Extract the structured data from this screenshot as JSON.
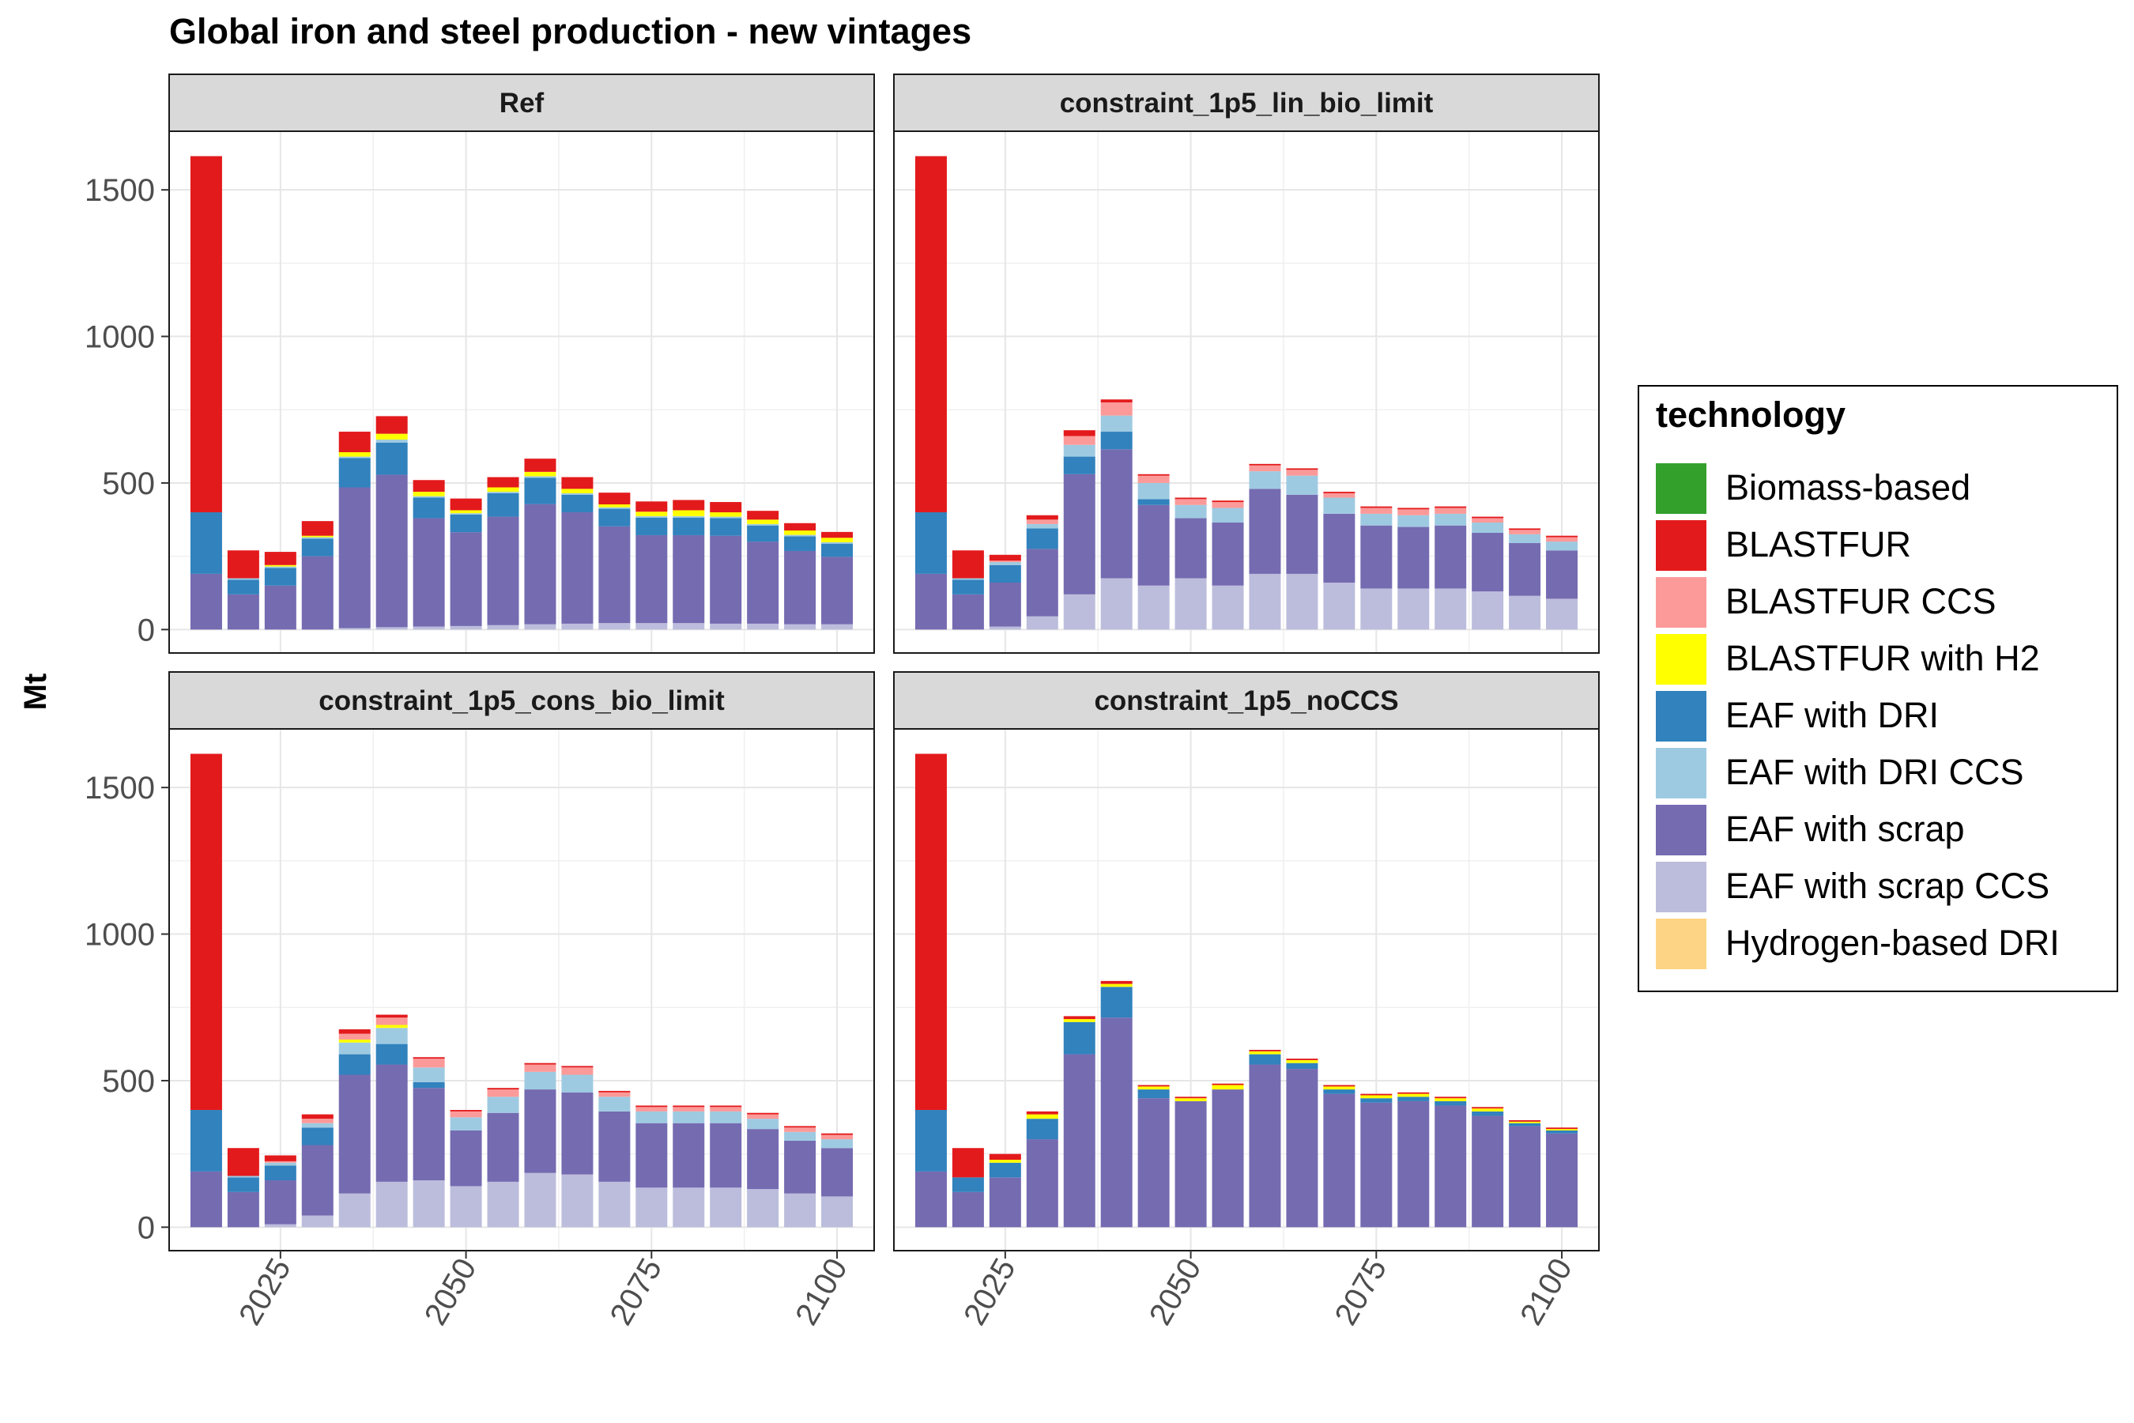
{
  "title": "Global iron and steel production - new vintages",
  "y_axis_label": "Mt",
  "legend": {
    "title": "technology",
    "items": [
      {
        "name": "Biomass-based",
        "color": "#33a02c"
      },
      {
        "name": "BLASTFUR",
        "color": "#e31a1c"
      },
      {
        "name": "BLASTFUR CCS",
        "color": "#fb9a99"
      },
      {
        "name": "BLASTFUR with H2",
        "color": "#ffff00"
      },
      {
        "name": "EAF with DRI",
        "color": "#3182bd"
      },
      {
        "name": "EAF with DRI CCS",
        "color": "#9ecae1"
      },
      {
        "name": "EAF with scrap",
        "color": "#756bb1"
      },
      {
        "name": "EAF with scrap CCS",
        "color": "#bcbddc"
      },
      {
        "name": "Hydrogen-based DRI",
        "color": "#fdd485"
      }
    ]
  },
  "chart_data": {
    "type": "bar",
    "stacked": true,
    "x": [
      2015,
      2020,
      2025,
      2030,
      2035,
      2040,
      2045,
      2050,
      2055,
      2060,
      2065,
      2070,
      2075,
      2080,
      2085,
      2090,
      2095,
      2100
    ],
    "x_ticks": [
      "2025",
      "2050",
      "2075",
      "2100"
    ],
    "xlim": [
      2010,
      2105
    ],
    "y_ticks": [
      "0",
      "500",
      "1000",
      "1500"
    ],
    "ylim": [
      -80,
      1700
    ],
    "panels": [
      {
        "name": "Ref",
        "series": [
          {
            "name": "EAF with scrap CCS",
            "values": [
              0,
              0,
              0,
              0,
              5,
              8,
              10,
              12,
              15,
              18,
              20,
              22,
              22,
              22,
              20,
              20,
              18,
              18
            ]
          },
          {
            "name": "EAF with scrap",
            "values": [
              190,
              120,
              150,
              250,
              480,
              520,
              370,
              320,
              370,
              410,
              380,
              330,
              300,
              300,
              300,
              280,
              250,
              230
            ]
          },
          {
            "name": "EAF with DRI",
            "values": [
              210,
              50,
              60,
              60,
              100,
              110,
              70,
              60,
              80,
              90,
              60,
              60,
              60,
              60,
              60,
              55,
              50,
              45
            ]
          },
          {
            "name": "EAF with DRI CCS",
            "values": [
              0,
              5,
              5,
              5,
              5,
              10,
              5,
              5,
              5,
              5,
              5,
              5,
              5,
              5,
              5,
              5,
              5,
              5
            ]
          },
          {
            "name": "BLASTFUR with H2",
            "values": [
              0,
              0,
              5,
              5,
              15,
              20,
              15,
              10,
              15,
              15,
              15,
              10,
              15,
              20,
              15,
              15,
              15,
              15
            ]
          },
          {
            "name": "BLASTFUR CCS",
            "values": [
              0,
              0,
              0,
              0,
              0,
              0,
              0,
              0,
              0,
              0,
              0,
              0,
              0,
              0,
              0,
              0,
              0,
              0
            ]
          },
          {
            "name": "BLASTFUR",
            "values": [
              1215,
              95,
              45,
              50,
              70,
              60,
              40,
              40,
              35,
              45,
              40,
              40,
              35,
              35,
              35,
              30,
              25,
              20
            ]
          },
          {
            "name": "Hydrogen-based DRI",
            "values": [
              0,
              0,
              0,
              0,
              0,
              0,
              0,
              0,
              0,
              0,
              0,
              0,
              0,
              0,
              0,
              0,
              0,
              0
            ]
          },
          {
            "name": "Biomass-based",
            "values": [
              0,
              0,
              0,
              0,
              0,
              0,
              0,
              0,
              0,
              0,
              0,
              0,
              0,
              0,
              0,
              0,
              0,
              0
            ]
          }
        ]
      },
      {
        "name": "constraint_1p5_lin_bio_limit",
        "series": [
          {
            "name": "EAF with scrap CCS",
            "values": [
              0,
              0,
              10,
              45,
              120,
              175,
              150,
              175,
              150,
              190,
              190,
              160,
              140,
              140,
              140,
              130,
              115,
              105
            ]
          },
          {
            "name": "EAF with scrap",
            "values": [
              190,
              120,
              150,
              230,
              410,
              440,
              275,
              205,
              215,
              290,
              270,
              235,
              215,
              210,
              215,
              200,
              180,
              165
            ]
          },
          {
            "name": "EAF with DRI",
            "values": [
              210,
              50,
              60,
              70,
              60,
              60,
              20,
              0,
              0,
              0,
              0,
              0,
              0,
              0,
              0,
              0,
              0,
              0
            ]
          },
          {
            "name": "EAF with DRI CCS",
            "values": [
              0,
              5,
              10,
              15,
              40,
              55,
              55,
              45,
              50,
              60,
              65,
              55,
              40,
              40,
              40,
              35,
              30,
              30
            ]
          },
          {
            "name": "BLASTFUR with H2",
            "values": [
              0,
              0,
              0,
              0,
              0,
              0,
              0,
              0,
              0,
              0,
              0,
              0,
              0,
              0,
              0,
              0,
              0,
              0
            ]
          },
          {
            "name": "BLASTFUR CCS",
            "values": [
              0,
              0,
              5,
              15,
              30,
              45,
              25,
              20,
              20,
              20,
              20,
              15,
              20,
              20,
              20,
              15,
              15,
              15
            ]
          },
          {
            "name": "BLASTFUR",
            "values": [
              1215,
              95,
              20,
              15,
              20,
              10,
              5,
              5,
              5,
              5,
              5,
              5,
              5,
              5,
              5,
              5,
              5,
              5
            ]
          },
          {
            "name": "Hydrogen-based DRI",
            "values": [
              0,
              0,
              0,
              0,
              0,
              0,
              0,
              0,
              0,
              0,
              0,
              0,
              0,
              0,
              0,
              0,
              0,
              0
            ]
          },
          {
            "name": "Biomass-based",
            "values": [
              0,
              0,
              0,
              0,
              0,
              0,
              0,
              0,
              0,
              0,
              0,
              0,
              0,
              0,
              0,
              0,
              0,
              0
            ]
          }
        ]
      },
      {
        "name": "constraint_1p5_cons_bio_limit",
        "series": [
          {
            "name": "EAF with scrap CCS",
            "values": [
              0,
              0,
              10,
              40,
              115,
              155,
              160,
              140,
              155,
              185,
              180,
              155,
              135,
              135,
              135,
              130,
              115,
              105
            ]
          },
          {
            "name": "EAF with scrap",
            "values": [
              190,
              120,
              150,
              240,
              405,
              400,
              315,
              190,
              235,
              285,
              280,
              240,
              220,
              220,
              220,
              205,
              180,
              165
            ]
          },
          {
            "name": "EAF with DRI",
            "values": [
              210,
              50,
              50,
              60,
              70,
              70,
              20,
              0,
              0,
              0,
              0,
              0,
              0,
              0,
              0,
              0,
              0,
              0
            ]
          },
          {
            "name": "EAF with DRI CCS",
            "values": [
              0,
              5,
              10,
              15,
              40,
              55,
              50,
              45,
              55,
              60,
              60,
              50,
              40,
              40,
              40,
              35,
              30,
              30
            ]
          },
          {
            "name": "BLASTFUR with H2",
            "values": [
              0,
              0,
              0,
              0,
              10,
              10,
              0,
              0,
              0,
              0,
              0,
              0,
              0,
              0,
              0,
              0,
              0,
              0
            ]
          },
          {
            "name": "BLASTFUR CCS",
            "values": [
              0,
              0,
              5,
              15,
              20,
              25,
              30,
              20,
              25,
              25,
              25,
              15,
              15,
              15,
              15,
              15,
              15,
              15
            ]
          },
          {
            "name": "BLASTFUR",
            "values": [
              1215,
              95,
              20,
              15,
              15,
              10,
              5,
              5,
              5,
              5,
              5,
              5,
              5,
              5,
              5,
              5,
              5,
              5
            ]
          },
          {
            "name": "Hydrogen-based DRI",
            "values": [
              0,
              0,
              0,
              0,
              0,
              0,
              0,
              0,
              0,
              0,
              0,
              0,
              0,
              0,
              0,
              0,
              0,
              0
            ]
          },
          {
            "name": "Biomass-based",
            "values": [
              0,
              0,
              0,
              0,
              0,
              0,
              0,
              0,
              0,
              0,
              0,
              0,
              0,
              0,
              0,
              0,
              0,
              0
            ]
          }
        ]
      },
      {
        "name": "constraint_1p5_noCCS",
        "series": [
          {
            "name": "EAF with scrap CCS",
            "values": [
              0,
              0,
              0,
              0,
              0,
              0,
              0,
              0,
              0,
              0,
              0,
              0,
              0,
              0,
              0,
              0,
              0,
              0
            ]
          },
          {
            "name": "EAF with scrap",
            "values": [
              190,
              120,
              170,
              300,
              590,
              715,
              440,
              430,
              470,
              555,
              540,
              455,
              425,
              430,
              415,
              380,
              345,
              320
            ]
          },
          {
            "name": "EAF with DRI",
            "values": [
              210,
              50,
              50,
              70,
              110,
              105,
              30,
              0,
              0,
              35,
              20,
              15,
              15,
              15,
              15,
              15,
              10,
              10
            ]
          },
          {
            "name": "EAF with DRI CCS",
            "values": [
              0,
              0,
              0,
              0,
              0,
              0,
              0,
              0,
              0,
              0,
              0,
              0,
              0,
              0,
              0,
              0,
              0,
              0
            ]
          },
          {
            "name": "BLASTFUR with H2",
            "values": [
              0,
              0,
              10,
              15,
              10,
              10,
              10,
              10,
              15,
              10,
              10,
              10,
              10,
              10,
              10,
              10,
              5,
              5
            ]
          },
          {
            "name": "BLASTFUR CCS",
            "values": [
              0,
              0,
              0,
              0,
              0,
              0,
              0,
              0,
              0,
              0,
              0,
              0,
              0,
              0,
              0,
              0,
              0,
              0
            ]
          },
          {
            "name": "BLASTFUR",
            "values": [
              1215,
              100,
              20,
              10,
              10,
              10,
              5,
              5,
              5,
              5,
              5,
              5,
              5,
              5,
              5,
              5,
              5,
              5
            ]
          },
          {
            "name": "Hydrogen-based DRI",
            "values": [
              0,
              0,
              0,
              0,
              0,
              0,
              0,
              0,
              0,
              0,
              0,
              0,
              0,
              0,
              0,
              0,
              0,
              0
            ]
          },
          {
            "name": "Biomass-based",
            "values": [
              0,
              0,
              0,
              0,
              0,
              0,
              0,
              0,
              0,
              0,
              0,
              0,
              0,
              0,
              0,
              0,
              0,
              0
            ]
          }
        ]
      }
    ]
  }
}
